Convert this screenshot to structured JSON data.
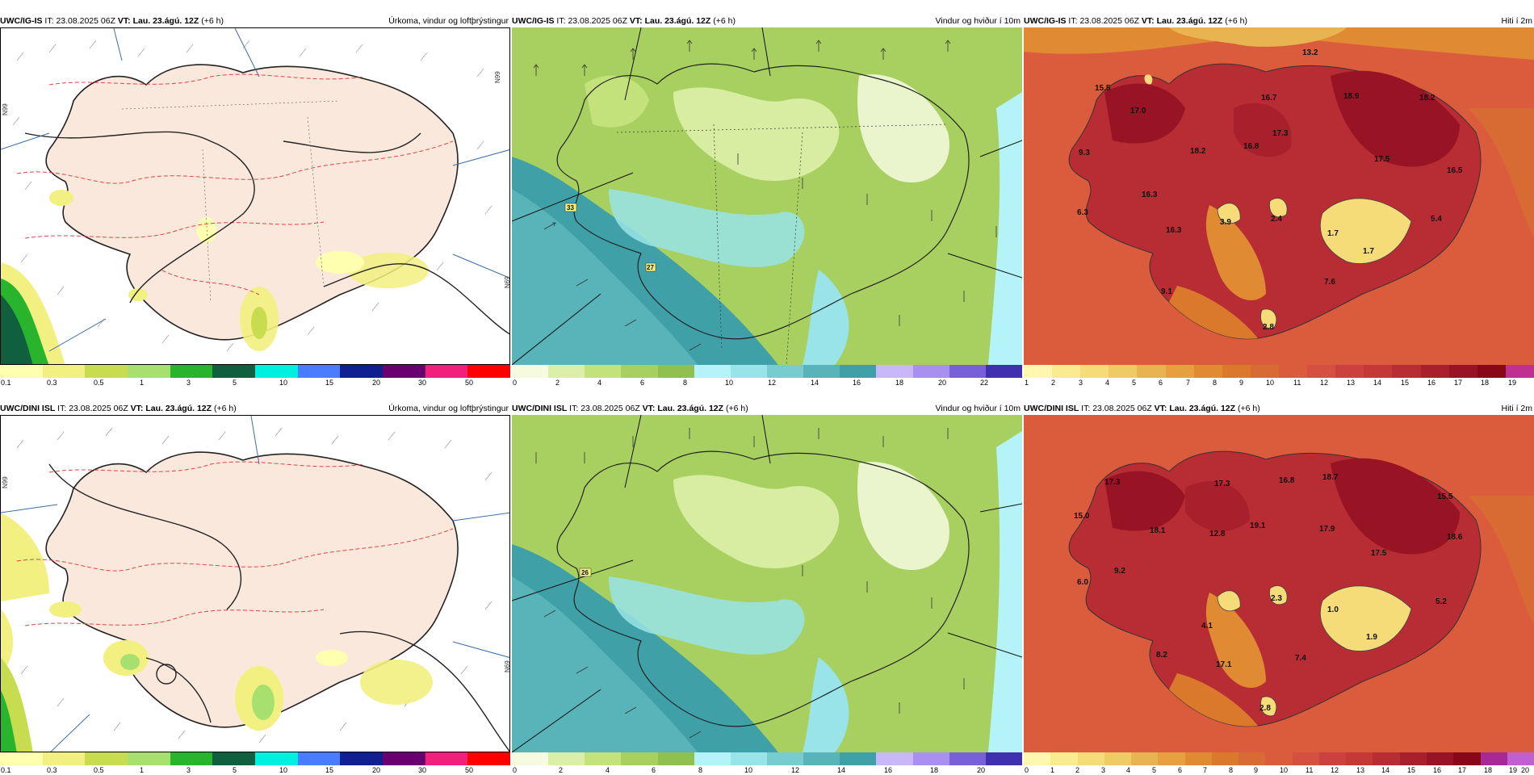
{
  "rows": [
    {
      "model": "UWC/IG-IS",
      "init_prefix": "IT:",
      "init": "23.08.2025 06Z",
      "valid_prefix": "VT:",
      "valid": "Lau. 23.ágú. 12Z",
      "lead": "(+6 h)",
      "panels": [
        {
          "title": "Úrkoma, vindur og loftþrýstingur",
          "legend_colors": [
            "#ffffb0",
            "#f2f080",
            "#c8dc50",
            "#a8e070",
            "#28b42d",
            "#106040",
            "#00f0e0",
            "#4a7cff",
            "#102090",
            "#6a0070",
            "#f0207c",
            "#ff0000"
          ],
          "tick_labels": [
            "0.1",
            "0.3",
            "0.5",
            "1",
            "3",
            "5",
            "10",
            "15",
            "20",
            "30",
            "50"
          ],
          "side_labels": [
            "N99",
            "N99",
            "N69"
          ]
        },
        {
          "title": "Vindur og hviður í 10m",
          "legend_colors": [
            "#f6fbe0",
            "#dcefa8",
            "#c4e27c",
            "#a8d060",
            "#90c050",
            "#b4f4f8",
            "#98e4e8",
            "#78ccd0",
            "#58b4b8",
            "#40a0a8",
            "#c8b8f8",
            "#a890f0",
            "#7860d8",
            "#4030b0"
          ],
          "tick_labels": [
            "0",
            "2",
            "4",
            "6",
            "8",
            "10",
            "12",
            "14",
            "16",
            "18",
            "20",
            "22"
          ],
          "station_labels": [
            "33",
            "27"
          ]
        },
        {
          "title": "Hiti í 2m",
          "legend_colors": [
            "#fff7b0",
            "#fbeb90",
            "#f5dc78",
            "#eecb64",
            "#e8b452",
            "#e6a040",
            "#e08a34",
            "#da782c",
            "#d86a34",
            "#da5c3c",
            "#d45040",
            "#cc4040",
            "#c43838",
            "#b82c34",
            "#a8202c",
            "#981424",
            "#880818",
            "#c03090"
          ],
          "tick_labels": [
            "1",
            "2",
            "3",
            "4",
            "5",
            "6",
            "7",
            "8",
            "9",
            "10",
            "11",
            "12",
            "13",
            "14",
            "15",
            "16",
            "17",
            "18",
            "19"
          ],
          "value_labels": [
            "13.2",
            "15.5",
            "17.0",
            "16.7",
            "18.9",
            "18.2",
            "9.3",
            "18.2",
            "16.8",
            "17.3",
            "17.5",
            "16.5",
            "6.3",
            "16.3",
            "16.3",
            "3.9",
            "2.4",
            "1.7",
            "5.4",
            "1.7",
            "7.6",
            "9.1",
            "2.8"
          ]
        }
      ]
    },
    {
      "model": "UWC/DINI ISL",
      "init_prefix": "IT:",
      "init": "23.08.2025 06Z",
      "valid_prefix": "VT:",
      "valid": "Lau. 23.ágú. 12Z",
      "lead": "(+6 h)",
      "panels": [
        {
          "title": "Úrkoma, vindur og loftþrýstingur",
          "legend_colors": [
            "#ffffb0",
            "#f2f080",
            "#c8dc50",
            "#a8e070",
            "#28b42d",
            "#106040",
            "#00f0e0",
            "#4a7cff",
            "#102090",
            "#6a0070",
            "#f0207c",
            "#ff0000"
          ],
          "tick_labels": [
            "0.1",
            "0.3",
            "0.5",
            "1",
            "3",
            "5",
            "10",
            "15",
            "20",
            "30",
            "50"
          ],
          "side_labels": [
            "N99",
            "N69"
          ]
        },
        {
          "title": "Vindur og hviður í 10m",
          "legend_colors": [
            "#f6fbe0",
            "#dcefa8",
            "#c4e27c",
            "#a8d060",
            "#90c050",
            "#b4f4f8",
            "#98e4e8",
            "#78ccd0",
            "#58b4b8",
            "#40a0a8",
            "#c8b8f8",
            "#a890f0",
            "#7860d8",
            "#4030b0"
          ],
          "tick_labels": [
            "0",
            "2",
            "4",
            "6",
            "8",
            "10",
            "12",
            "14",
            "16",
            "18",
            "20"
          ],
          "station_labels": [
            "26"
          ]
        },
        {
          "title": "Hiti í 2m",
          "legend_colors": [
            "#fff7b0",
            "#fbeb90",
            "#f5dc78",
            "#eecb64",
            "#e8b452",
            "#e6a040",
            "#e08a34",
            "#da782c",
            "#d86a34",
            "#da5c3c",
            "#d45040",
            "#cc4040",
            "#c43838",
            "#b82c34",
            "#a8202c",
            "#981424",
            "#880818",
            "#a82898",
            "#c060d0"
          ],
          "tick_labels": [
            "0",
            "1",
            "2",
            "3",
            "4",
            "5",
            "6",
            "7",
            "8",
            "9",
            "10",
            "11",
            "12",
            "13",
            "14",
            "15",
            "16",
            "17",
            "18",
            "19",
            "20"
          ],
          "value_labels": [
            "17.3",
            "17.3",
            "16.8",
            "18.7",
            "15.5",
            "15.0",
            "18.1",
            "12.8",
            "19.1",
            "17.9",
            "17.5",
            "18.6",
            "9.2",
            "6.0",
            "2.3",
            "1.0",
            "5.2",
            "4.1",
            "1.9",
            "8.2",
            "17.1",
            "7.4",
            "2.8"
          ]
        }
      ]
    }
  ]
}
